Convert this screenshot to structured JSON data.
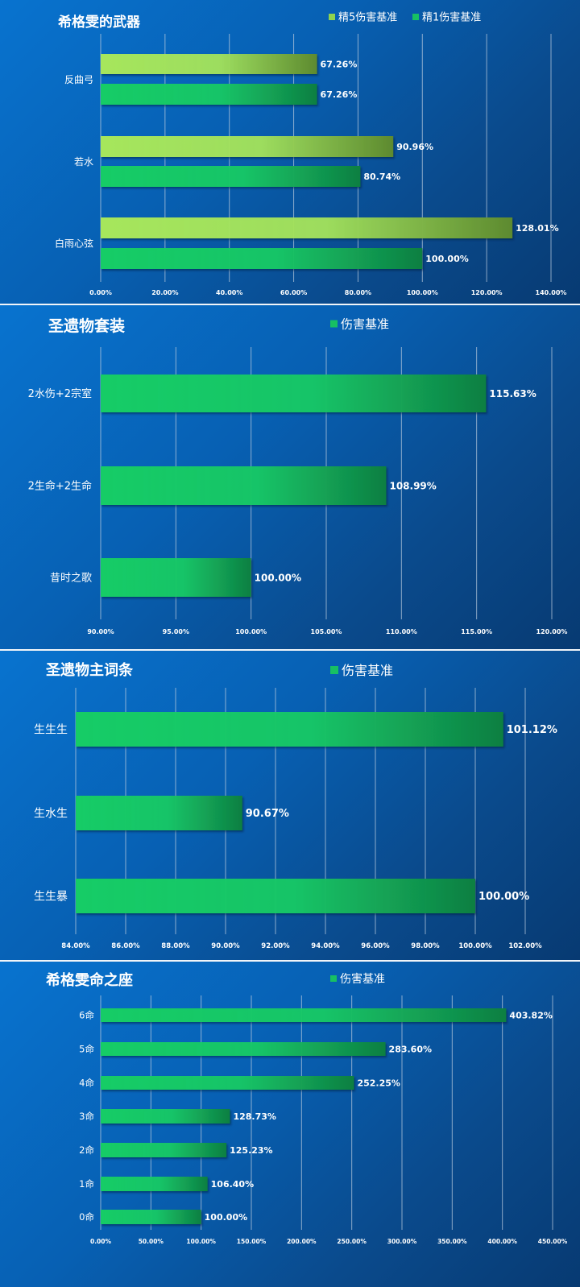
{
  "colors": {
    "bg_light": "#0873cf",
    "bg_dark": "#073a72",
    "bar_green_light": "#17cc66",
    "bar_green_dark": "#0f7f42",
    "bar_lime_light": "#a6e65c",
    "bar_lime_dark": "#5d8a2f",
    "legend_lime": "#8fd34e",
    "legend_green": "#17c063",
    "grid": "#b8c9dc"
  },
  "chart_data": [
    {
      "type": "bar",
      "orientation": "horizontal",
      "title": "希格雯的武器",
      "categories": [
        "反曲弓",
        "若水",
        "白雨心弦"
      ],
      "series": [
        {
          "name": "精5伤害基准",
          "values": [
            67.26,
            90.96,
            128.01
          ]
        },
        {
          "name": "精1伤害基准",
          "values": [
            67.26,
            80.74,
            100.0
          ]
        }
      ],
      "value_labels": [
        [
          "67.26%",
          "90.96%",
          "128.01%"
        ],
        [
          "67.26%",
          "80.74%",
          "100.00%"
        ]
      ],
      "xlim": [
        0,
        140
      ],
      "ticks": [
        "0.00%",
        "20.00%",
        "40.00%",
        "60.00%",
        "80.00%",
        "100.00%",
        "120.00%",
        "140.00%"
      ],
      "grid": true,
      "legend_position": "top-right"
    },
    {
      "type": "bar",
      "orientation": "horizontal",
      "title": "圣遗物套装",
      "categories": [
        "2水伤+2宗室",
        "2生命+2生命",
        "昔时之歌"
      ],
      "series": [
        {
          "name": "伤害基准",
          "values": [
            115.63,
            108.99,
            100.0
          ]
        }
      ],
      "value_labels": [
        [
          "115.63%",
          "108.99%",
          "100.00%"
        ]
      ],
      "xlim": [
        90,
        120
      ],
      "ticks": [
        "90.00%",
        "95.00%",
        "100.00%",
        "105.00%",
        "110.00%",
        "115.00%",
        "120.00%"
      ],
      "grid": true,
      "legend_position": "top-right"
    },
    {
      "type": "bar",
      "orientation": "horizontal",
      "title": "圣遗物主词条",
      "categories": [
        "生生生",
        "生水生",
        "生生暴"
      ],
      "series": [
        {
          "name": "伤害基准",
          "values": [
            101.12,
            90.67,
            100.0
          ]
        }
      ],
      "value_labels": [
        [
          "101.12%",
          "90.67%",
          "100.00%"
        ]
      ],
      "xlim": [
        84,
        102
      ],
      "ticks": [
        "84.00%",
        "86.00%",
        "88.00%",
        "90.00%",
        "92.00%",
        "94.00%",
        "96.00%",
        "98.00%",
        "100.00%",
        "102.00%"
      ],
      "grid": true,
      "legend_position": "top-right"
    },
    {
      "type": "bar",
      "orientation": "horizontal",
      "title": "希格雯命之座",
      "categories": [
        "6命",
        "5命",
        "4命",
        "3命",
        "2命",
        "1命",
        "0命"
      ],
      "series": [
        {
          "name": "伤害基准",
          "values": [
            403.82,
            283.6,
            252.25,
            128.73,
            125.23,
            106.4,
            100.0
          ]
        }
      ],
      "value_labels": [
        [
          "403.82%",
          "283.60%",
          "252.25%",
          "128.73%",
          "125.23%",
          "106.40%",
          "100.00%"
        ]
      ],
      "xlim": [
        0,
        450
      ],
      "ticks": [
        "0.00%",
        "50.00%",
        "100.00%",
        "150.00%",
        "200.00%",
        "250.00%",
        "300.00%",
        "350.00%",
        "400.00%",
        "450.00%"
      ],
      "grid": true,
      "legend_position": "top-right"
    }
  ]
}
